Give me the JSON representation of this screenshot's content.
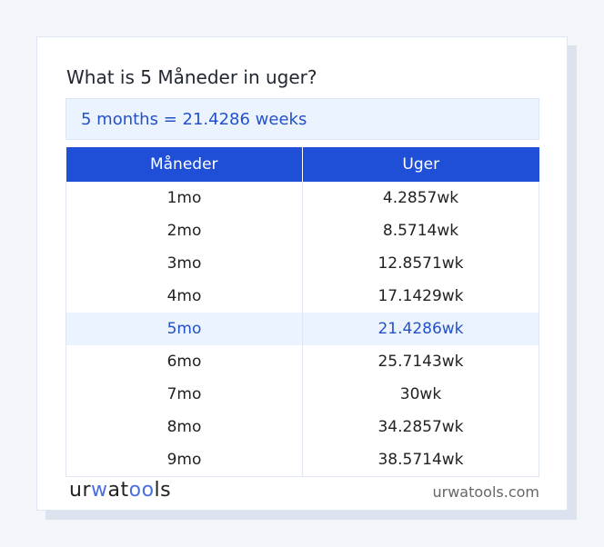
{
  "title": "What is 5 Måneder in uger?",
  "result": "5 months = 21.4286 weeks",
  "table": {
    "headers": [
      "Måneder",
      "Uger"
    ],
    "rows": [
      [
        "1mo",
        "4.2857wk"
      ],
      [
        "2mo",
        "8.5714wk"
      ],
      [
        "3mo",
        "12.8571wk"
      ],
      [
        "4mo",
        "17.1429wk"
      ],
      [
        "5mo",
        "21.4286wk"
      ],
      [
        "6mo",
        "25.7143wk"
      ],
      [
        "7mo",
        "30wk"
      ],
      [
        "8mo",
        "34.2857wk"
      ],
      [
        "9mo",
        "38.5714wk"
      ]
    ],
    "highlighted_row": 4
  },
  "footer": {
    "logo_a": "ur",
    "logo_b": "w",
    "logo_c": "at",
    "logo_d": "oo",
    "logo_e": "ls",
    "site": "urwatools.com"
  },
  "colors": {
    "accent": "#1f4fd6",
    "highlight_bg": "#ebf4fe"
  }
}
